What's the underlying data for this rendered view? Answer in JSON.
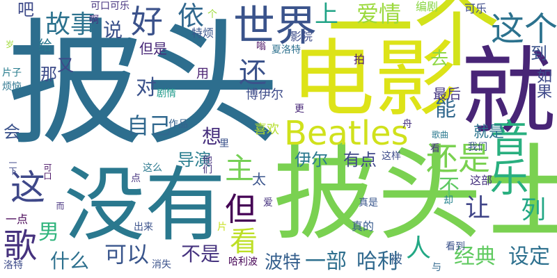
{
  "words": [
    {
      "text": "披头",
      "color": "#2d6e8e"
    },
    {
      "text": "披头士",
      "color": "#7ad151"
    },
    {
      "text": "一个",
      "color": "#d2e21b"
    },
    {
      "text": "电影",
      "color": "#dde318"
    },
    {
      "text": "就",
      "color": "#482576"
    },
    {
      "text": "没有",
      "color": "#2a788e"
    },
    {
      "text": "世界",
      "color": "#3a538b"
    },
    {
      "text": "好",
      "color": "#3b528b"
    },
    {
      "text": "故事",
      "color": "#2c728e"
    },
    {
      "text": "依",
      "color": "#31688e"
    },
    {
      "text": "说",
      "color": "#3b528b"
    },
    {
      "text": "吧",
      "color": "#3e4a89"
    },
    {
      "text": "上",
      "color": "#20a386"
    },
    {
      "text": "爱情",
      "color": "#9bd93c"
    },
    {
      "text": "这个",
      "color": "#2c728e"
    },
    {
      "text": "还",
      "color": "#3b528b"
    },
    {
      "text": "Beatles",
      "color": "#d0e11c"
    },
    {
      "text": "还是",
      "color": "#7ad151"
    },
    {
      "text": "音乐",
      "color": "#29af7f"
    },
    {
      "text": "这",
      "color": "#3f4889"
    },
    {
      "text": "但",
      "color": "#440154"
    },
    {
      "text": "主",
      "color": "#75d054"
    },
    {
      "text": "看",
      "color": "#bddf26"
    },
    {
      "text": "能",
      "color": "#31688e"
    },
    {
      "text": "自己",
      "color": "#31688e"
    },
    {
      "text": "对",
      "color": "#3b528b"
    },
    {
      "text": "歌",
      "color": "#46327e"
    },
    {
      "text": "男",
      "color": "#2fb47c"
    },
    {
      "text": "可以",
      "color": "#39558c"
    },
    {
      "text": "什么",
      "color": "#2d708e"
    },
    {
      "text": "不是",
      "color": "#46337f"
    },
    {
      "text": "人",
      "color": "#22a884"
    },
    {
      "text": "让",
      "color": "#404588"
    },
    {
      "text": "列",
      "color": "#22a785"
    },
    {
      "text": "不",
      "color": "#5ec962"
    },
    {
      "text": "经典",
      "color": "#60ca60"
    },
    {
      "text": "设定",
      "color": "#2d708e"
    },
    {
      "text": "一部",
      "color": "#2e6f8e"
    },
    {
      "text": "哈利",
      "color": "#30698e"
    },
    {
      "text": "波特",
      "color": "#355f8d"
    },
    {
      "text": "伊尔",
      "color": "#2a788e"
    },
    {
      "text": "有点",
      "color": "#3f4788"
    },
    {
      "text": "导演",
      "color": "#287d8e"
    },
    {
      "text": "想",
      "color": "#472f7d"
    },
    {
      "text": "太",
      "color": "#3a548c"
    },
    {
      "text": "就是",
      "color": "#2b748e"
    },
    {
      "text": "最后",
      "color": "#453781"
    },
    {
      "text": "到",
      "color": "#3b528b"
    },
    {
      "text": "如果",
      "color": "#3e4989"
    },
    {
      "text": "去",
      "color": "#8fd744"
    },
    {
      "text": "喜欢",
      "color": "#b5de2b"
    },
    {
      "text": "博伊尔",
      "color": "#3e4c8a"
    },
    {
      "text": "会",
      "color": "#3b528b"
    },
    {
      "text": "那",
      "color": "#3e4c8a"
    },
    {
      "text": "又",
      "color": "#3e4a89"
    },
    {
      "text": "给",
      "color": "#2a788e"
    },
    {
      "text": "但是",
      "color": "#482878"
    },
    {
      "text": "用",
      "color": "#481f70"
    },
    {
      "text": "剧情",
      "color": "#1f9a8a"
    },
    {
      "text": "作品",
      "color": "#34618d"
    },
    {
      "text": "特烦",
      "color": "#39558c"
    },
    {
      "text": "影院",
      "color": "#3e4c8a"
    },
    {
      "text": "可乐",
      "color": "#3e4c8a"
    },
    {
      "text": "编剧",
      "color": "#8bd646"
    },
    {
      "text": "夏洛特",
      "color": "#2d718e"
    },
    {
      "text": "拍",
      "color": "#481668"
    },
    {
      "text": "更",
      "color": "#482878"
    },
    {
      "text": "嗡",
      "color": "#470e61"
    },
    {
      "text": "个",
      "color": "#9fda3a"
    },
    {
      "text": "啊",
      "color": "#46307e"
    },
    {
      "text": "可口可乐",
      "color": "#46337f"
    },
    {
      "text": "岁",
      "color": "#a0da39"
    },
    {
      "text": "片子",
      "color": "#287c8e"
    },
    {
      "text": "烦恼",
      "color": "#2b748e"
    },
    {
      "text": "歌曲",
      "color": "#2a788e"
    },
    {
      "text": "这样",
      "color": "#3e4c8a"
    },
    {
      "text": "我们",
      "color": "#3b528b"
    },
    {
      "text": "看",
      "color": "#46337f"
    },
    {
      "text": "这部",
      "color": "#46327e"
    },
    {
      "text": "真是",
      "color": "#39568c"
    },
    {
      "text": "却",
      "color": "#25838e"
    },
    {
      "text": "真的",
      "color": "#375b8d"
    },
    {
      "text": "看到",
      "color": "#3b528b"
    },
    {
      "text": "被",
      "color": "#355f8d"
    },
    {
      "text": "与",
      "color": "#31688e"
    },
    {
      "text": "一下",
      "color": "#3e4989"
    },
    {
      "text": "这么",
      "color": "#2a788e"
    },
    {
      "text": "他们",
      "color": "#46327e"
    },
    {
      "text": "里",
      "color": "#3b528b"
    },
    {
      "text": "点",
      "color": "#46337f"
    },
    {
      "text": "可口",
      "color": "#471063"
    },
    {
      "text": "而",
      "color": "#46327e"
    },
    {
      "text": "片",
      "color": "#c8e020"
    },
    {
      "text": "出来",
      "color": "#3b528b"
    },
    {
      "text": "一点",
      "color": "#440154"
    },
    {
      "text": "洛特",
      "color": "#3e4c8a"
    },
    {
      "text": "消失",
      "color": "#3b528b"
    },
    {
      "text": "哈利波",
      "color": "#440154"
    },
    {
      "text": "爱",
      "color": "#46327e"
    },
    {
      "text": "舟",
      "color": "#46327e"
    }
  ]
}
